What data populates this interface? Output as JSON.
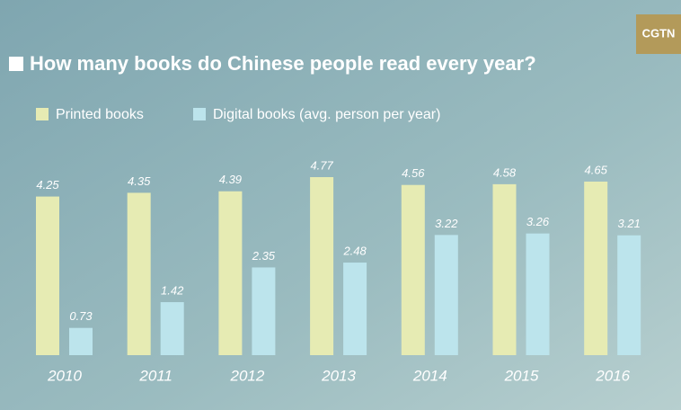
{
  "logo": "CGTN",
  "chart_data": {
    "type": "bar",
    "title": "How many books do Chinese people read every year?",
    "categories": [
      "2010",
      "2011",
      "2012",
      "2013",
      "2014",
      "2015",
      "2016"
    ],
    "series": [
      {
        "name": "Printed books",
        "color": "#e6ebb3",
        "values": [
          4.25,
          4.35,
          4.39,
          4.77,
          4.56,
          4.58,
          4.65
        ]
      },
      {
        "name": "Digital books (avg. person per year)",
        "color": "#bce4ec",
        "values": [
          0.73,
          1.42,
          2.35,
          2.48,
          3.22,
          3.26,
          3.21
        ]
      }
    ]
  }
}
